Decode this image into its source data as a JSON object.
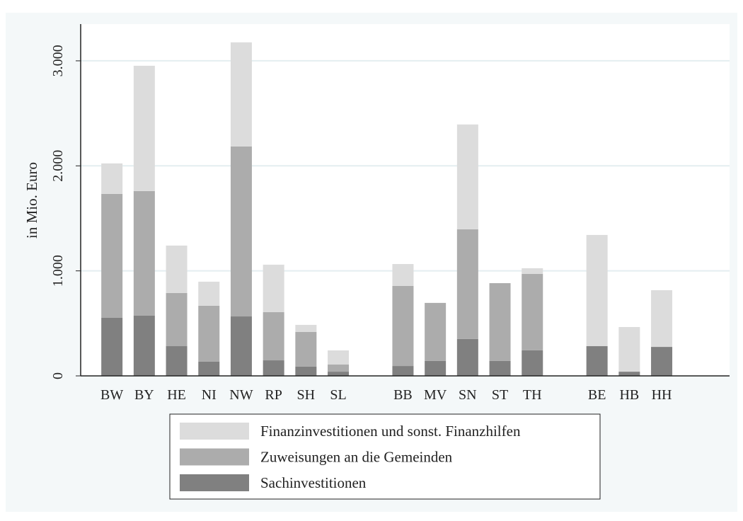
{
  "chart_data": {
    "type": "stacked_bar",
    "y_label": "in Mio. Euro",
    "categories": [
      "BW",
      "BY",
      "HE",
      "NI",
      "NW",
      "RP",
      "SH",
      "SL",
      null,
      "BB",
      "MV",
      "SN",
      "ST",
      "TH",
      null,
      "BE",
      "HB",
      "HH"
    ],
    "series": [
      {
        "name": "Sachinvestitionen",
        "color": "#808080",
        "values": [
          553,
          573,
          283,
          135,
          566,
          148,
          88,
          40,
          null,
          94,
          142,
          351,
          142,
          243,
          null,
          283,
          40,
          276
        ]
      },
      {
        "name": "Zuweisungen an die Gemeinden",
        "color": "#acacac",
        "values": [
          1180,
          1187,
          506,
          533,
          1619,
          459,
          330,
          68,
          null,
          762,
          553,
          1045,
          741,
          728,
          null,
          0,
          0,
          0
        ]
      },
      {
        "name": "Finanzinvestitionen und sonst. Finanzhilfen",
        "color": "#dcdcdc",
        "values": [
          290,
          1193,
          452,
          229,
          991,
          452,
          68,
          135,
          null,
          209,
          0,
          998,
          0,
          54,
          null,
          1059,
          425,
          540
        ]
      }
    ],
    "ylim": [
      0,
      3350
    ],
    "yticks": [
      0,
      {
        "value": 1000,
        "label": "1.000"
      },
      {
        "value": 2000,
        "label": "2.000"
      },
      {
        "value": 3000,
        "label": "3.000"
      }
    ],
    "grid": true,
    "legend": "bottom"
  }
}
